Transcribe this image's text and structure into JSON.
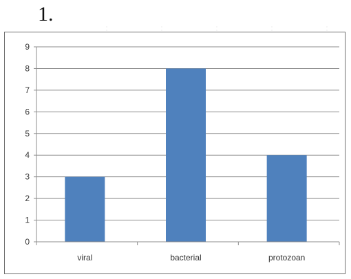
{
  "question": {
    "number": "1."
  },
  "chart_data": {
    "type": "bar",
    "categories": [
      "viral",
      "bacterial",
      "protozoan"
    ],
    "values": [
      3,
      8,
      4
    ],
    "xlabel": "",
    "ylabel": "",
    "ylim": [
      0,
      9
    ],
    "yticks": [
      "0",
      "1",
      "2",
      "3",
      "4",
      "5",
      "6",
      "7",
      "8",
      "9"
    ],
    "grid": true,
    "legend": "none",
    "bar_color": "#4f81bd",
    "gridline_color": "#8c8c8c"
  }
}
